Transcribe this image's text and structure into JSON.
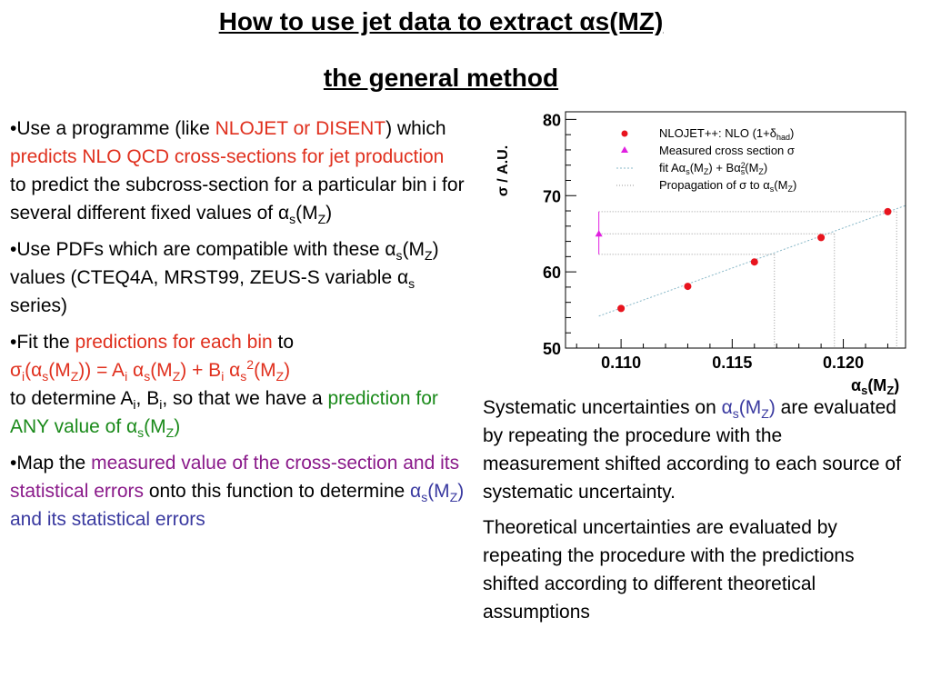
{
  "slide": {
    "title_line1": "How to use jet data to extract αs(MZ)",
    "title_line2": " the general method"
  },
  "bullets": {
    "b1": {
      "p1": "•Use a programme (like ",
      "p2": "NLOJET or DISENT",
      "p3": ") which ",
      "p4": "predicts NLO QCD cross-sections for jet production",
      "p5": " to predict the subcross-section for a particular bin i for several different fixed values of α",
      "p6": "s",
      "p7": "(M",
      "p8": "Z",
      "p9": ")"
    },
    "b2": {
      "p1": "•Use PDFs which are compatible with these α",
      "p2": "s",
      "p3": "(M",
      "p4": "Z",
      "p5": ") values (CTEQ4A, MRST99, ZEUS-S variable α",
      "p6": "s",
      "p7": " series)"
    },
    "b3": {
      "p1": "•Fit the ",
      "p2": "predictions for each bin",
      "p3": " to",
      "f1": "σ",
      "f2": "i",
      "f3": "(α",
      "f4": "s",
      "f5": "(M",
      "f6": "Z",
      "f7": ")) = A",
      "f8": "i",
      "f9": " α",
      "f10": "s",
      "f11": "(M",
      "f12": "Z",
      "f13": ") + B",
      "f14": "i",
      "f15": " α",
      "f16": "s",
      "f17": "2",
      "f18": "(M",
      "f19": "Z",
      "f20": ")",
      "p4": "to determine A",
      "p5": "i",
      "p6": ", B",
      "p7": "i",
      "p8": ", so that we have a ",
      "p9": "prediction for ANY value of α",
      "p10": "s",
      "p11": "(M",
      "p12": "Z",
      "p13": ")"
    },
    "b4": {
      "p1": "•Map the ",
      "p2": "measured value of the cross-section and its statistical errors",
      "p3": " onto this function to determine ",
      "p4": "α",
      "p5": "s",
      "p6": "(M",
      "p7": "Z",
      "p8": ") and its statistical errors"
    }
  },
  "notes": {
    "n1": {
      "p1": "Systematic uncertainties on ",
      "p2": "α",
      "p3": "s",
      "p4": "(M",
      "p5": "Z",
      "p6": ")",
      "p7": " are evaluated by repeating the procedure with the measurement shifted according to each source of systematic uncertainty."
    },
    "n2": "Theoretical uncertainties are evaluated by repeating the procedure with the predictions shifted according to different theoretical assumptions"
  },
  "colors": {
    "red": "#e0301e",
    "green": "#1a8a1a",
    "purple": "#8a1a8a",
    "blue": "#3a3aa0",
    "marker_red": "#e8141e",
    "marker_magenta": "#e020e0",
    "fit_line": "#88b8c8",
    "projection_line": "#9a9a9a"
  },
  "chart_data": {
    "type": "scatter",
    "xlabel_main": "α",
    "xlabel_sub": "s",
    "xlabel_rest": "(M",
    "xlabel_sub2": "Z",
    "xlabel_close": ")",
    "ylabel": "σ / A.U.",
    "xlim": [
      0.1075,
      0.1228
    ],
    "ylim": [
      50,
      81
    ],
    "x_ticks": [
      0.11,
      0.115,
      0.12
    ],
    "x_tick_labels": [
      "0.110",
      "0.115",
      "0.120"
    ],
    "y_ticks": [
      50,
      60,
      70,
      80
    ],
    "y_tick_labels": [
      "50",
      "60",
      "70",
      "80"
    ],
    "legend_position": "top-right",
    "legend": [
      {
        "text": "NLOJET++: NLO (1+δ",
        "sub": "had",
        "close": ")"
      },
      {
        "text": "Measured cross section σ"
      },
      {
        "text": "fit Aα",
        "sub": "s",
        "mid": "(M",
        "sub2": "Z",
        "mid2": ") + Bα",
        "sup": "2",
        "sub3": "s",
        "close": "(M",
        "sub4": "Z",
        "close2": ")"
      },
      {
        "text": "Propagation of σ to α",
        "sub": "s",
        "mid": "(M",
        "sub2": "Z",
        "close": ")"
      }
    ],
    "series": [
      {
        "points": [
          {
            "x": 0.11,
            "y": 55.2
          },
          {
            "x": 0.113,
            "y": 58.1
          },
          {
            "x": 0.116,
            "y": 61.3
          },
          {
            "x": 0.119,
            "y": 64.5
          },
          {
            "x": 0.122,
            "y": 67.9
          }
        ]
      }
    ],
    "measurement": {
      "x": 0.109,
      "y": 65.0,
      "y_err_low": 62.3,
      "y_err_high": 67.9
    },
    "fit_line": {
      "x_from": 0.109,
      "x_to": 0.1228,
      "y_from": 54.2,
      "y_to": 68.7
    },
    "projections": {
      "x_low": 0.1169,
      "x_central": 0.1196,
      "x_high": 0.1224
    }
  }
}
